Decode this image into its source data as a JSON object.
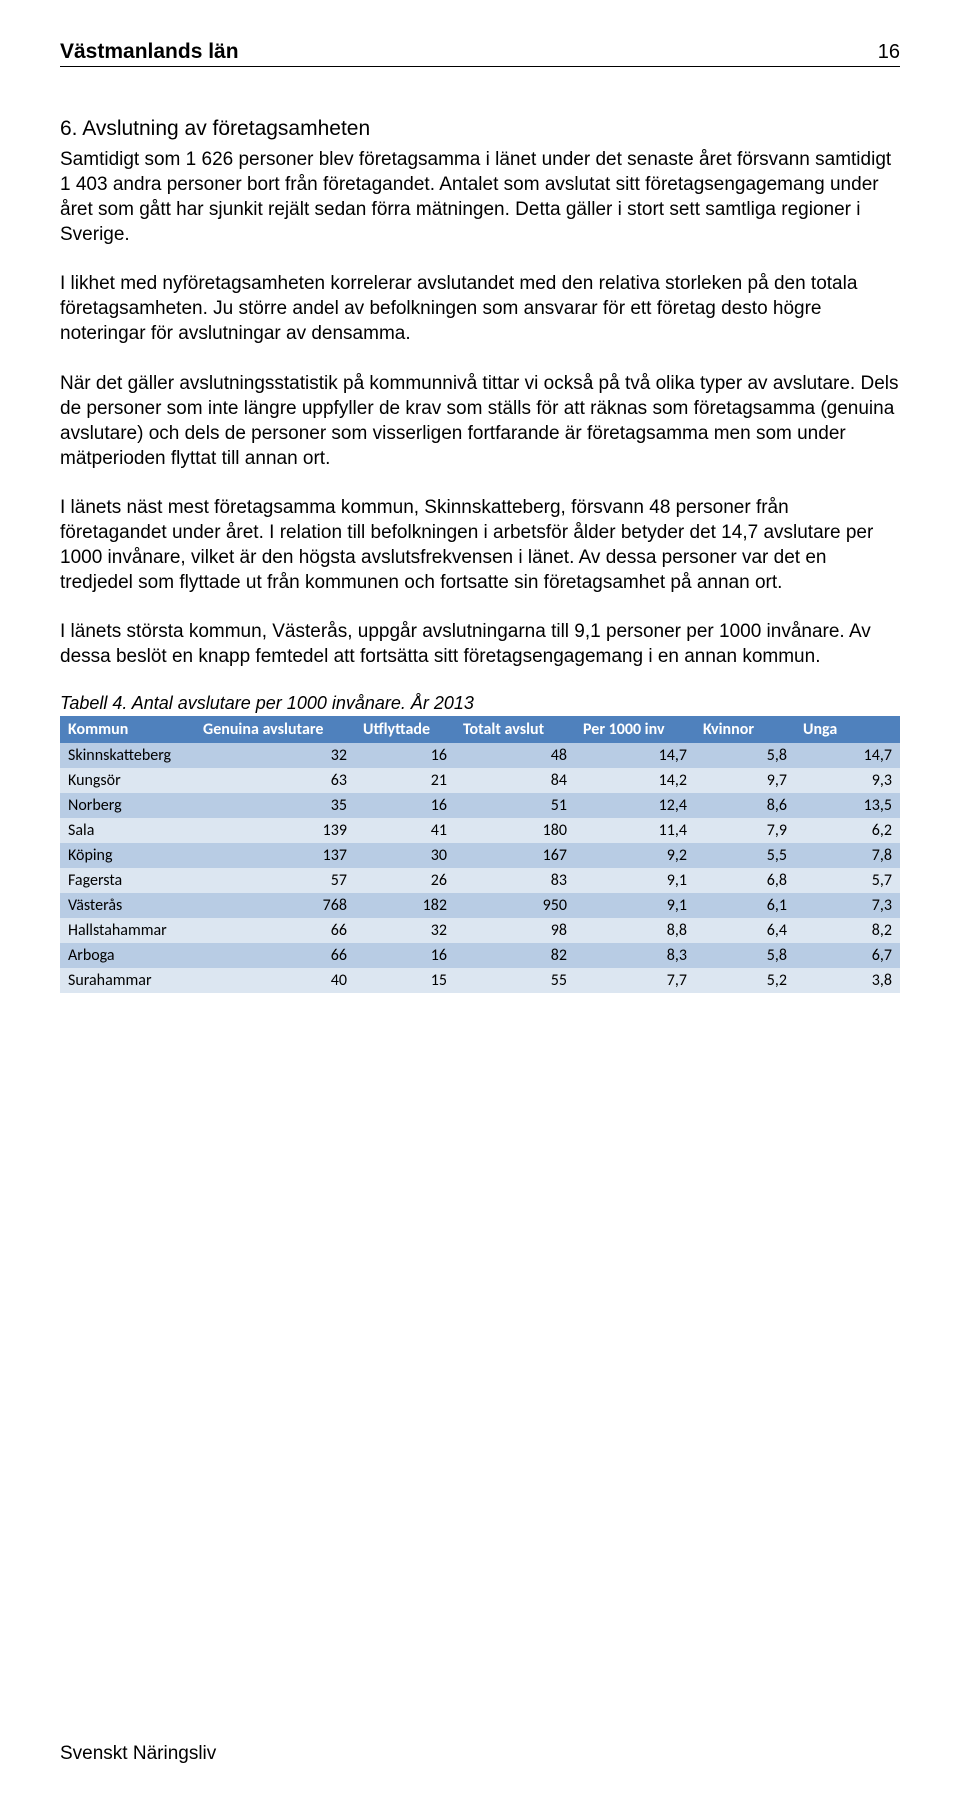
{
  "header": {
    "title": "Västmanlands län",
    "page_number": "16"
  },
  "section": {
    "heading": "6. Avslutning av företagsamheten",
    "paragraphs": [
      "Samtidigt som 1 626 personer blev företagsamma i länet under det senaste året försvann samtidigt 1 403 andra personer bort från företagandet. Antalet som avslutat sitt företagsengagemang under året som gått har sjunkit rejält sedan förra mätningen. Detta gäller i stort sett samtliga regioner i Sverige.",
      "I likhet med nyföretagsamheten korrelerar avslutandet med den relativa storleken på den totala företagsamheten. Ju större andel av befolkningen som ansvarar för ett företag desto högre noteringar för avslutningar av densamma.",
      "När det gäller avslutningsstatistik på kommunnivå tittar vi också på två olika typer av avslutare. Dels de personer som inte längre uppfyller de krav som ställs för att räknas som företagsamma (genuina avslutare) och dels de personer som visserligen fortfarande är företagsamma men som under mätperioden flyttat till annan ort.",
      "I länets näst mest företagsamma kommun, Skinnskatteberg, försvann 48 personer från företagandet under året. I relation till befolkningen i arbetsför ålder betyder det 14,7 avslutare per 1000 invånare, vilket är den högsta avslutsfrekvensen i länet. Av dessa personer var det en tredjedel som flyttade ut från kommunen och fortsatte sin företagsamhet på annan ort.",
      "I länets största kommun, Västerås, uppgår avslutningarna till 9,1 personer per 1000 invånare. Av dessa beslöt en knapp femtedel att fortsätta sitt företagsengagemang i en annan kommun."
    ]
  },
  "table": {
    "caption": "Tabell 4. Antal avslutare per 1000 invånare. År 2013",
    "columns": [
      "Kommun",
      "Genuina avslutare",
      "Utflyttade",
      "Totalt avslut",
      "Per 1000 inv",
      "Kvinnor",
      "Unga"
    ],
    "header_bg": "#4f81bd",
    "header_color": "#ffffff",
    "band_a_bg": "#b8cce4",
    "band_b_bg": "#dce6f1",
    "rows": [
      {
        "kommun": "Skinnskatteberg",
        "genuina": "32",
        "utflyttade": "16",
        "totalt": "48",
        "per1000": "14,7",
        "kvinnor": "5,8",
        "unga": "14,7"
      },
      {
        "kommun": "Kungsör",
        "genuina": "63",
        "utflyttade": "21",
        "totalt": "84",
        "per1000": "14,2",
        "kvinnor": "9,7",
        "unga": "9,3"
      },
      {
        "kommun": "Norberg",
        "genuina": "35",
        "utflyttade": "16",
        "totalt": "51",
        "per1000": "12,4",
        "kvinnor": "8,6",
        "unga": "13,5"
      },
      {
        "kommun": "Sala",
        "genuina": "139",
        "utflyttade": "41",
        "totalt": "180",
        "per1000": "11,4",
        "kvinnor": "7,9",
        "unga": "6,2"
      },
      {
        "kommun": "Köping",
        "genuina": "137",
        "utflyttade": "30",
        "totalt": "167",
        "per1000": "9,2",
        "kvinnor": "5,5",
        "unga": "7,8"
      },
      {
        "kommun": "Fagersta",
        "genuina": "57",
        "utflyttade": "26",
        "totalt": "83",
        "per1000": "9,1",
        "kvinnor": "6,8",
        "unga": "5,7"
      },
      {
        "kommun": "Västerås",
        "genuina": "768",
        "utflyttade": "182",
        "totalt": "950",
        "per1000": "9,1",
        "kvinnor": "6,1",
        "unga": "7,3"
      },
      {
        "kommun": "Hallstahammar",
        "genuina": "66",
        "utflyttade": "32",
        "totalt": "98",
        "per1000": "8,8",
        "kvinnor": "6,4",
        "unga": "8,2"
      },
      {
        "kommun": "Arboga",
        "genuina": "66",
        "utflyttade": "16",
        "totalt": "82",
        "per1000": "8,3",
        "kvinnor": "5,8",
        "unga": "6,7"
      },
      {
        "kommun": "Surahammar",
        "genuina": "40",
        "utflyttade": "15",
        "totalt": "55",
        "per1000": "7,7",
        "kvinnor": "5,2",
        "unga": "3,8"
      }
    ]
  },
  "footer": {
    "text": "Svenskt Näringsliv"
  }
}
